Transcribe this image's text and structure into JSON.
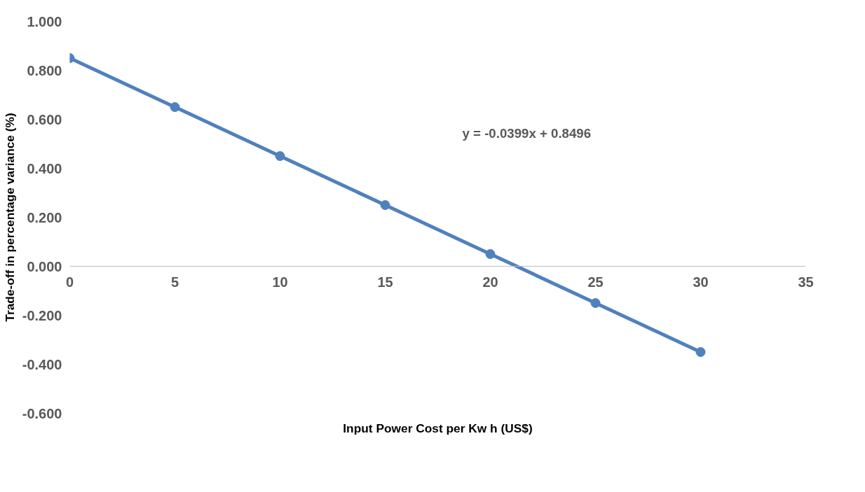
{
  "chart_data": {
    "type": "line",
    "xlabel": "Input Power Cost per Kw h (US$)",
    "ylabel": "Trade-off in percentage variance (%)",
    "x": [
      0,
      5,
      10,
      15,
      20,
      25,
      30
    ],
    "series": [
      {
        "color": "#4f81bd",
        "values": [
          0.85,
          0.65,
          0.45,
          0.25,
          0.05,
          -0.15,
          -0.35
        ]
      }
    ],
    "marker": "circle",
    "line_style": "solid",
    "grid": false,
    "xlim": [
      0,
      35
    ],
    "xticks": [
      0,
      5,
      10,
      15,
      20,
      25,
      30,
      35
    ],
    "ylim": [
      -0.6,
      1.0
    ],
    "yticks": [
      {
        "value": -0.6,
        "label": "-0.600"
      },
      {
        "value": -0.4,
        "label": "-0.400"
      },
      {
        "value": -0.2,
        "label": "-0.200"
      },
      {
        "value": 0,
        "label": "0.000"
      },
      {
        "value": 0.2,
        "label": "0.200"
      },
      {
        "value": 0.4,
        "label": "0.400"
      },
      {
        "value": 0.6,
        "label": "0.600"
      },
      {
        "value": 0.8,
        "label": "0.800"
      },
      {
        "value": 1.0,
        "label": "1.000"
      }
    ],
    "annotations": [
      "y = -0.0399x + 0.8496"
    ]
  }
}
